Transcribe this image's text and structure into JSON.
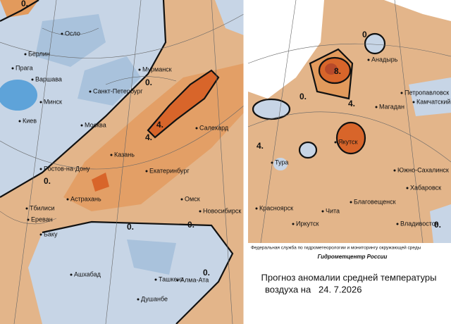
{
  "left_map": {
    "cities": [
      "Осло",
      "Берлин",
      "Прага",
      "Варшава",
      "Санкт-Петербург",
      "Минск",
      "Мурманск",
      "Киев",
      "Москва",
      "Салехард",
      "Казань",
      "Екатеринбург",
      "Ростов-на-Дону",
      "Астрахань",
      "Омск",
      "Тбилиси",
      "Новосибирск",
      "Ереван",
      "Баку",
      "Ашхабад",
      "Ташкент",
      "Алма-Ата",
      "Душанбе"
    ],
    "contour_labels": [
      "0.",
      "4.",
      "4.",
      "0.",
      "0.",
      "0.",
      "0.",
      "0."
    ]
  },
  "right_map": {
    "cities": [
      "Анадырь",
      "Петропавловск",
      "Камчатский",
      "Магадан",
      "Якутск",
      "Тура",
      "Южно-Сахалинск",
      "Хабаровск",
      "Красноярск",
      "Чита",
      "Благовещенск",
      "Иркутск",
      "Владивосток"
    ],
    "contour_labels": [
      "0.",
      "8.",
      "4.",
      "0.",
      "4.",
      "0."
    ]
  },
  "footer": {
    "agency": "Федеральная служба по гидрометеорологии и мониторингу окружающей среды",
    "brand": "Гидрометцентр России",
    "title_line1": "Прогноз аномалии средней температуры",
    "title_line2": "воздуха на",
    "date": "24. 7.2026"
  }
}
